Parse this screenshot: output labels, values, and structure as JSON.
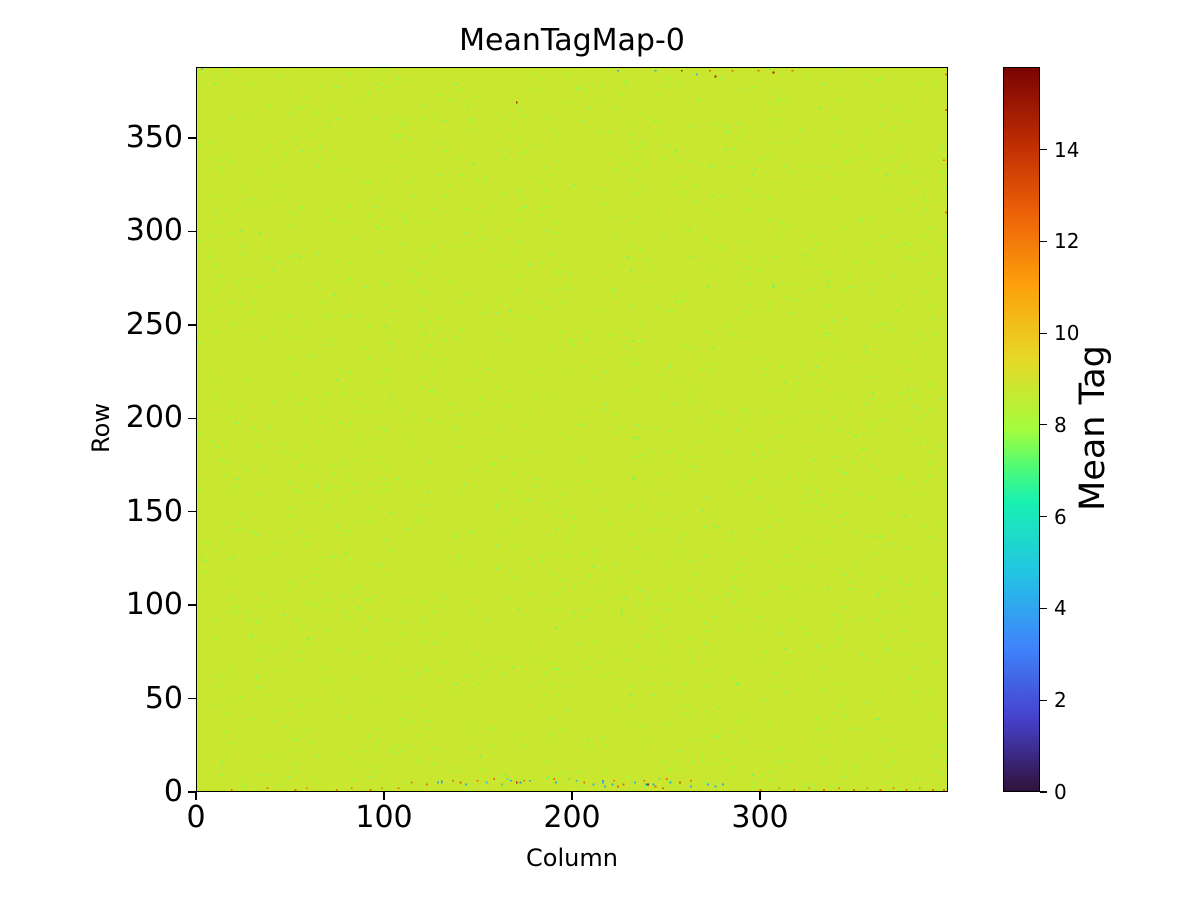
{
  "chart_data": {
    "type": "heatmap",
    "title": "MeanTagMap-0",
    "xlabel": "Column",
    "ylabel": "Row",
    "colorbar_label": "Mean Tag",
    "x_range": [
      0,
      400
    ],
    "y_range": [
      0,
      388
    ],
    "xticks": [
      {
        "v": 0,
        "label": "0"
      },
      {
        "v": 100,
        "label": "100"
      },
      {
        "v": 200,
        "label": "200"
      },
      {
        "v": 300,
        "label": "300"
      }
    ],
    "yticks": [
      {
        "v": 0,
        "label": "0"
      },
      {
        "v": 50,
        "label": "50"
      },
      {
        "v": 100,
        "label": "100"
      },
      {
        "v": 150,
        "label": "150"
      },
      {
        "v": 200,
        "label": "200"
      },
      {
        "v": 250,
        "label": "250"
      },
      {
        "v": 300,
        "label": "300"
      },
      {
        "v": 350,
        "label": "350"
      }
    ],
    "colorbar_ticks": [
      {
        "v": 0,
        "label": "0"
      },
      {
        "v": 2,
        "label": "2"
      },
      {
        "v": 4,
        "label": "4"
      },
      {
        "v": 6,
        "label": "6"
      },
      {
        "v": 8,
        "label": "8"
      },
      {
        "v": 10,
        "label": "10"
      },
      {
        "v": 12,
        "label": "12"
      },
      {
        "v": 14,
        "label": "14"
      }
    ],
    "vmin": 0,
    "vmax": 15.8,
    "colormap": "turbo",
    "colormap_stops": [
      [
        0.0,
        "#30123b"
      ],
      [
        0.1,
        "#4641cd"
      ],
      [
        0.2,
        "#3f84fb"
      ],
      [
        0.3,
        "#23c3e4"
      ],
      [
        0.4,
        "#18f1b1"
      ],
      [
        0.45,
        "#52fb73"
      ],
      [
        0.5,
        "#a4fc3c"
      ],
      [
        0.6,
        "#e7d726"
      ],
      [
        0.7,
        "#fda00b"
      ],
      [
        0.8,
        "#ec6108"
      ],
      [
        0.9,
        "#bc2a02"
      ],
      [
        1.0,
        "#7a0403"
      ]
    ],
    "base_value": 8.8,
    "speckle": {
      "density": 0.02,
      "min": 7.4,
      "max": 8.4,
      "seed": 7
    },
    "noise_points": [
      [
        18,
        0,
        12.3
      ],
      [
        37,
        1,
        12.3
      ],
      [
        52,
        0,
        12.3
      ],
      [
        58,
        1,
        12.3
      ],
      [
        74,
        0,
        12.3
      ],
      [
        82,
        1,
        12.3
      ],
      [
        92,
        0,
        12.3
      ],
      [
        98,
        1,
        12.3
      ],
      [
        107,
        1,
        12.3
      ],
      [
        114,
        4,
        12.5
      ],
      [
        122,
        3,
        12.5
      ],
      [
        136,
        5,
        12.5
      ],
      [
        140,
        4,
        12.8
      ],
      [
        149,
        5,
        12.5
      ],
      [
        158,
        6,
        12.8
      ],
      [
        170,
        4,
        14.8
      ],
      [
        174,
        5,
        12.5
      ],
      [
        190,
        6,
        12.8
      ],
      [
        206,
        4,
        12.5
      ],
      [
        222,
        5,
        12.8
      ],
      [
        224,
        2,
        12.5
      ],
      [
        227,
        3,
        12.5
      ],
      [
        238,
        5,
        12.8
      ],
      [
        240,
        3,
        14.8
      ],
      [
        244,
        2,
        12.5
      ],
      [
        248,
        1,
        12.8
      ],
      [
        250,
        6,
        12.5
      ],
      [
        257,
        4,
        12.8
      ],
      [
        263,
        5,
        12.5
      ],
      [
        128,
        4,
        4.2
      ],
      [
        130,
        5,
        4.2
      ],
      [
        130,
        4,
        3.5
      ],
      [
        143,
        3,
        4.2
      ],
      [
        154,
        4,
        4.2
      ],
      [
        162,
        3,
        4.5
      ],
      [
        167,
        5,
        4.2
      ],
      [
        172,
        4,
        3.5
      ],
      [
        177,
        5,
        4.2
      ],
      [
        191,
        4,
        4.2
      ],
      [
        202,
        5,
        4.2
      ],
      [
        211,
        3,
        4.5
      ],
      [
        216,
        4,
        4.2
      ],
      [
        216,
        5,
        3.5
      ],
      [
        217,
        2,
        4.2
      ],
      [
        221,
        3,
        4.2
      ],
      [
        233,
        4,
        4.2
      ],
      [
        239,
        3,
        4.5
      ],
      [
        243,
        3,
        4.2
      ],
      [
        252,
        4,
        4.2
      ],
      [
        263,
        2,
        4.2
      ],
      [
        272,
        3,
        4.2
      ],
      [
        276,
        2,
        4.5
      ],
      [
        280,
        3,
        4.2
      ],
      [
        165,
        6,
        6.6
      ],
      [
        198,
        6,
        6.6
      ],
      [
        246,
        6,
        6.6
      ],
      [
        300,
        0,
        12.0
      ],
      [
        310,
        1,
        12.0
      ],
      [
        318,
        0,
        12.0
      ],
      [
        326,
        1,
        12.0
      ],
      [
        334,
        0,
        12.0
      ],
      [
        342,
        1,
        12.0
      ],
      [
        350,
        0,
        12.0
      ],
      [
        357,
        1,
        12.0
      ],
      [
        364,
        0,
        12.0
      ],
      [
        371,
        1,
        12.0
      ],
      [
        378,
        0,
        12.0
      ],
      [
        385,
        1,
        12.0
      ],
      [
        392,
        0,
        12.0
      ],
      [
        398,
        0,
        12.0
      ],
      [
        224,
        386,
        4.3
      ],
      [
        244,
        386,
        4.3
      ],
      [
        266,
        384,
        4.3
      ],
      [
        258,
        386,
        14.7
      ],
      [
        276,
        383,
        14.7
      ],
      [
        307,
        385,
        14.7
      ],
      [
        273,
        386,
        12.5
      ],
      [
        285,
        386,
        12.5
      ],
      [
        299,
        386,
        12.5
      ],
      [
        317,
        386,
        12.5
      ],
      [
        2,
        387,
        5.2
      ],
      [
        170,
        369,
        14.5
      ],
      [
        399,
        310,
        12.2
      ],
      [
        398,
        338,
        12.2
      ],
      [
        399,
        365,
        12.2
      ],
      [
        399,
        384,
        12.2
      ]
    ]
  }
}
